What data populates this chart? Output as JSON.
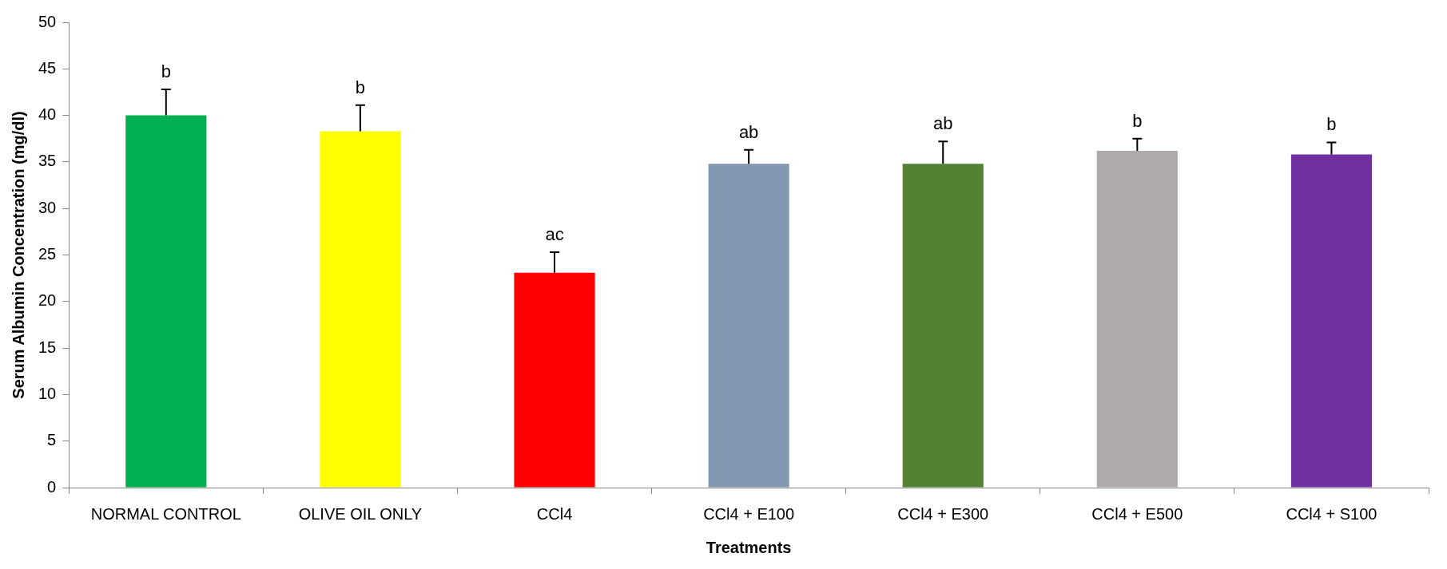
{
  "chart_data": {
    "type": "bar",
    "xlabel": "Treatments",
    "ylabel": "Serum Albumin Concentration (mg/dl)",
    "categories": [
      "NORMAL CONTROL",
      "OLIVE OIL ONLY",
      "CCl4",
      "CCl4 + E100",
      "CCl4 + E300",
      "CCl4 + E500",
      "CCl4 + S100"
    ],
    "values": [
      40.0,
      38.3,
      23.1,
      34.8,
      34.8,
      36.2,
      35.8
    ],
    "colors": [
      "#00b050",
      "#ffff00",
      "#ff0000",
      "#8497b0",
      "#548235",
      "#aeaaaa",
      "#7030a0"
    ],
    "errors": [
      [
        40.0,
        42.8
      ],
      [
        38.3,
        41.1
      ],
      [
        23.1,
        25.3
      ],
      [
        34.8,
        36.3
      ],
      [
        34.8,
        37.2
      ],
      [
        36.2,
        37.5
      ],
      [
        35.8,
        37.1
      ]
    ],
    "ylim": [
      0,
      50
    ],
    "yticks": [
      0,
      5,
      10,
      15,
      20,
      25,
      30,
      35,
      40,
      45,
      50
    ],
    "grid": false,
    "annotations": [
      {
        "text": "b",
        "x": "NORMAL CONTROL",
        "y": 42.8
      },
      {
        "text": "b",
        "x": "OLIVE OIL ONLY",
        "y": 41.1
      },
      {
        "text": "ac",
        "x": "CCl4",
        "y": 25.3
      },
      {
        "text": "ab",
        "x": "CCl4 + E100",
        "y": 36.3
      },
      {
        "text": "ab",
        "x": "CCl4 + E300",
        "y": 37.2
      },
      {
        "text": "b",
        "x": "CCl4 + E500",
        "y": 37.5
      },
      {
        "text": "b",
        "x": "CCl4 + S100",
        "y": 37.1
      }
    ]
  }
}
